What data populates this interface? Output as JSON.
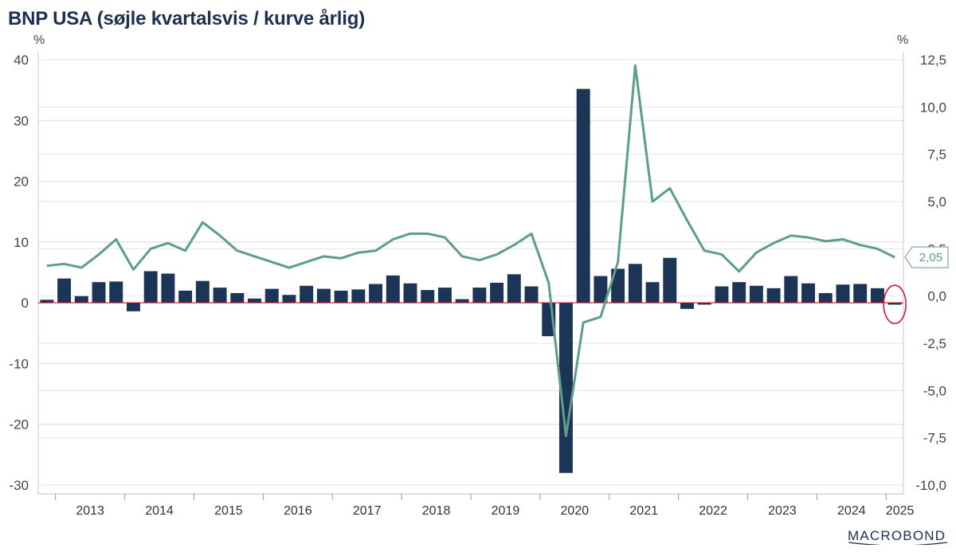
{
  "title": "BNP USA (søjle kvartalsvis / kurve årlig)",
  "left_unit": "%",
  "right_unit": "%",
  "logo": "MACROBOND",
  "callout_label": "2,05",
  "colors": {
    "bars": "#1c3557",
    "line": "#5c9e8a",
    "zero_line": "#d0021b",
    "highlight_circle": "#c8102e",
    "grid": "#d9d9d9"
  },
  "chart_data": {
    "type": "bar+line",
    "y_left": {
      "range": [
        -30,
        40
      ],
      "ticks": [
        40,
        30,
        20,
        10,
        0,
        -10,
        -20,
        -30
      ],
      "tick_labels": [
        "40",
        "30",
        "20",
        "10",
        "0",
        "-10",
        "-20",
        "-30"
      ]
    },
    "y_right": {
      "range": [
        -10,
        12.5
      ],
      "ticks": [
        12.5,
        10,
        7.5,
        5,
        2.5,
        0,
        -2.5,
        -5,
        -7.5,
        -10
      ],
      "tick_labels": [
        "12,5",
        "10,0",
        "7,5",
        "5,0",
        "2,5",
        "0,0",
        "-2,5",
        "-5,0",
        "-7,5",
        "-10,0"
      ]
    },
    "x_labels": [
      "2013",
      "2014",
      "2015",
      "2016",
      "2017",
      "2018",
      "2019",
      "2020",
      "2021",
      "2022",
      "2023",
      "2024",
      "2025"
    ],
    "quarters": [
      "2012Q4",
      "2013Q1",
      "2013Q2",
      "2013Q3",
      "2013Q4",
      "2014Q1",
      "2014Q2",
      "2014Q3",
      "2014Q4",
      "2015Q1",
      "2015Q2",
      "2015Q3",
      "2015Q4",
      "2016Q1",
      "2016Q2",
      "2016Q3",
      "2016Q4",
      "2017Q1",
      "2017Q2",
      "2017Q3",
      "2017Q4",
      "2018Q1",
      "2018Q2",
      "2018Q3",
      "2018Q4",
      "2019Q1",
      "2019Q2",
      "2019Q3",
      "2019Q4",
      "2020Q1",
      "2020Q2",
      "2020Q3",
      "2020Q4",
      "2021Q1",
      "2021Q2",
      "2021Q3",
      "2021Q4",
      "2022Q1",
      "2022Q2",
      "2022Q3",
      "2022Q4",
      "2023Q1",
      "2023Q2",
      "2023Q3",
      "2023Q4",
      "2024Q1",
      "2024Q2",
      "2024Q3",
      "2024Q4",
      "2025Q1"
    ],
    "series": [
      {
        "name": "Kvartalsvis",
        "axis": "left",
        "style": "bar",
        "values": [
          0.5,
          4.0,
          1.1,
          3.4,
          3.5,
          -1.4,
          5.2,
          4.8,
          2.0,
          3.6,
          2.5,
          1.6,
          0.7,
          2.3,
          1.3,
          2.8,
          2.3,
          2.0,
          2.2,
          3.1,
          4.5,
          3.2,
          2.1,
          2.5,
          0.6,
          2.5,
          3.3,
          4.7,
          2.7,
          -5.5,
          -28.0,
          35.2,
          4.4,
          5.6,
          6.4,
          3.4,
          7.4,
          -1.0,
          -0.3,
          2.7,
          3.4,
          2.8,
          2.4,
          4.4,
          3.2,
          1.6,
          3.0,
          3.1,
          2.4,
          -0.3
        ]
      },
      {
        "name": "Årlig",
        "axis": "right",
        "style": "line",
        "values": [
          1.6,
          1.7,
          1.5,
          2.2,
          3.0,
          1.4,
          2.5,
          2.8,
          2.4,
          3.9,
          3.2,
          2.4,
          2.1,
          1.8,
          1.5,
          1.8,
          2.1,
          2.0,
          2.3,
          2.4,
          3.0,
          3.3,
          3.3,
          3.1,
          2.1,
          1.9,
          2.2,
          2.7,
          3.3,
          0.7,
          -7.4,
          -1.4,
          -1.1,
          1.8,
          12.2,
          5.0,
          5.7,
          4.0,
          2.4,
          2.2,
          1.3,
          2.3,
          2.8,
          3.2,
          3.1,
          2.9,
          3.0,
          2.7,
          2.5,
          2.05
        ]
      }
    ],
    "annotations": [
      "2,05"
    ],
    "grid": true,
    "legend": "none"
  }
}
